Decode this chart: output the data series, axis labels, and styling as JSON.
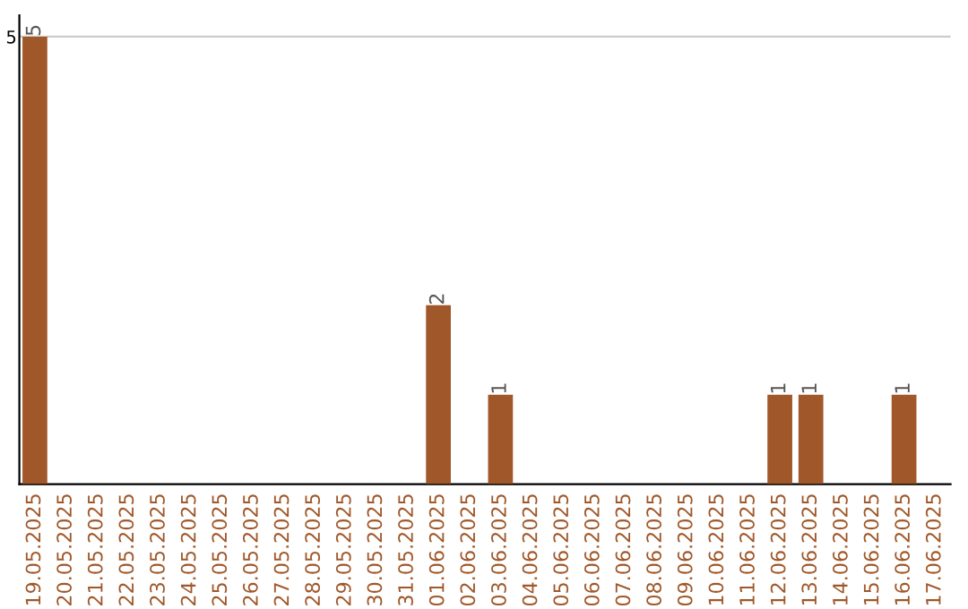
{
  "chart_data": {
    "type": "bar",
    "categories": [
      "19.05.2025",
      "20.05.2025",
      "21.05.2025",
      "22.05.2025",
      "23.05.2025",
      "24.05.2025",
      "25.05.2025",
      "26.05.2025",
      "27.05.2025",
      "28.05.2025",
      "29.05.2025",
      "30.05.2025",
      "31.05.2025",
      "01.06.2025",
      "02.06.2025",
      "03.06.2025",
      "04.06.2025",
      "05.06.2025",
      "06.06.2025",
      "07.06.2025",
      "08.06.2025",
      "09.06.2025",
      "10.06.2025",
      "11.06.2025",
      "12.06.2025",
      "13.06.2025",
      "14.06.2025",
      "15.06.2025",
      "16.06.2025",
      "17.06.2025"
    ],
    "values": [
      5,
      0,
      0,
      0,
      0,
      0,
      0,
      0,
      0,
      0,
      0,
      0,
      0,
      2,
      0,
      1,
      0,
      0,
      0,
      0,
      0,
      0,
      0,
      0,
      1,
      1,
      0,
      0,
      1,
      0
    ],
    "value_labels": [
      "5",
      null,
      null,
      null,
      null,
      null,
      null,
      null,
      null,
      null,
      null,
      null,
      null,
      "2",
      null,
      "1",
      null,
      null,
      null,
      null,
      null,
      null,
      null,
      null,
      "1",
      "1",
      null,
      null,
      "1",
      null
    ],
    "color": "#a0582a",
    "ylim": [
      0,
      5.24
    ],
    "yticks": [
      5
    ],
    "grid": "y",
    "legend": false
  }
}
